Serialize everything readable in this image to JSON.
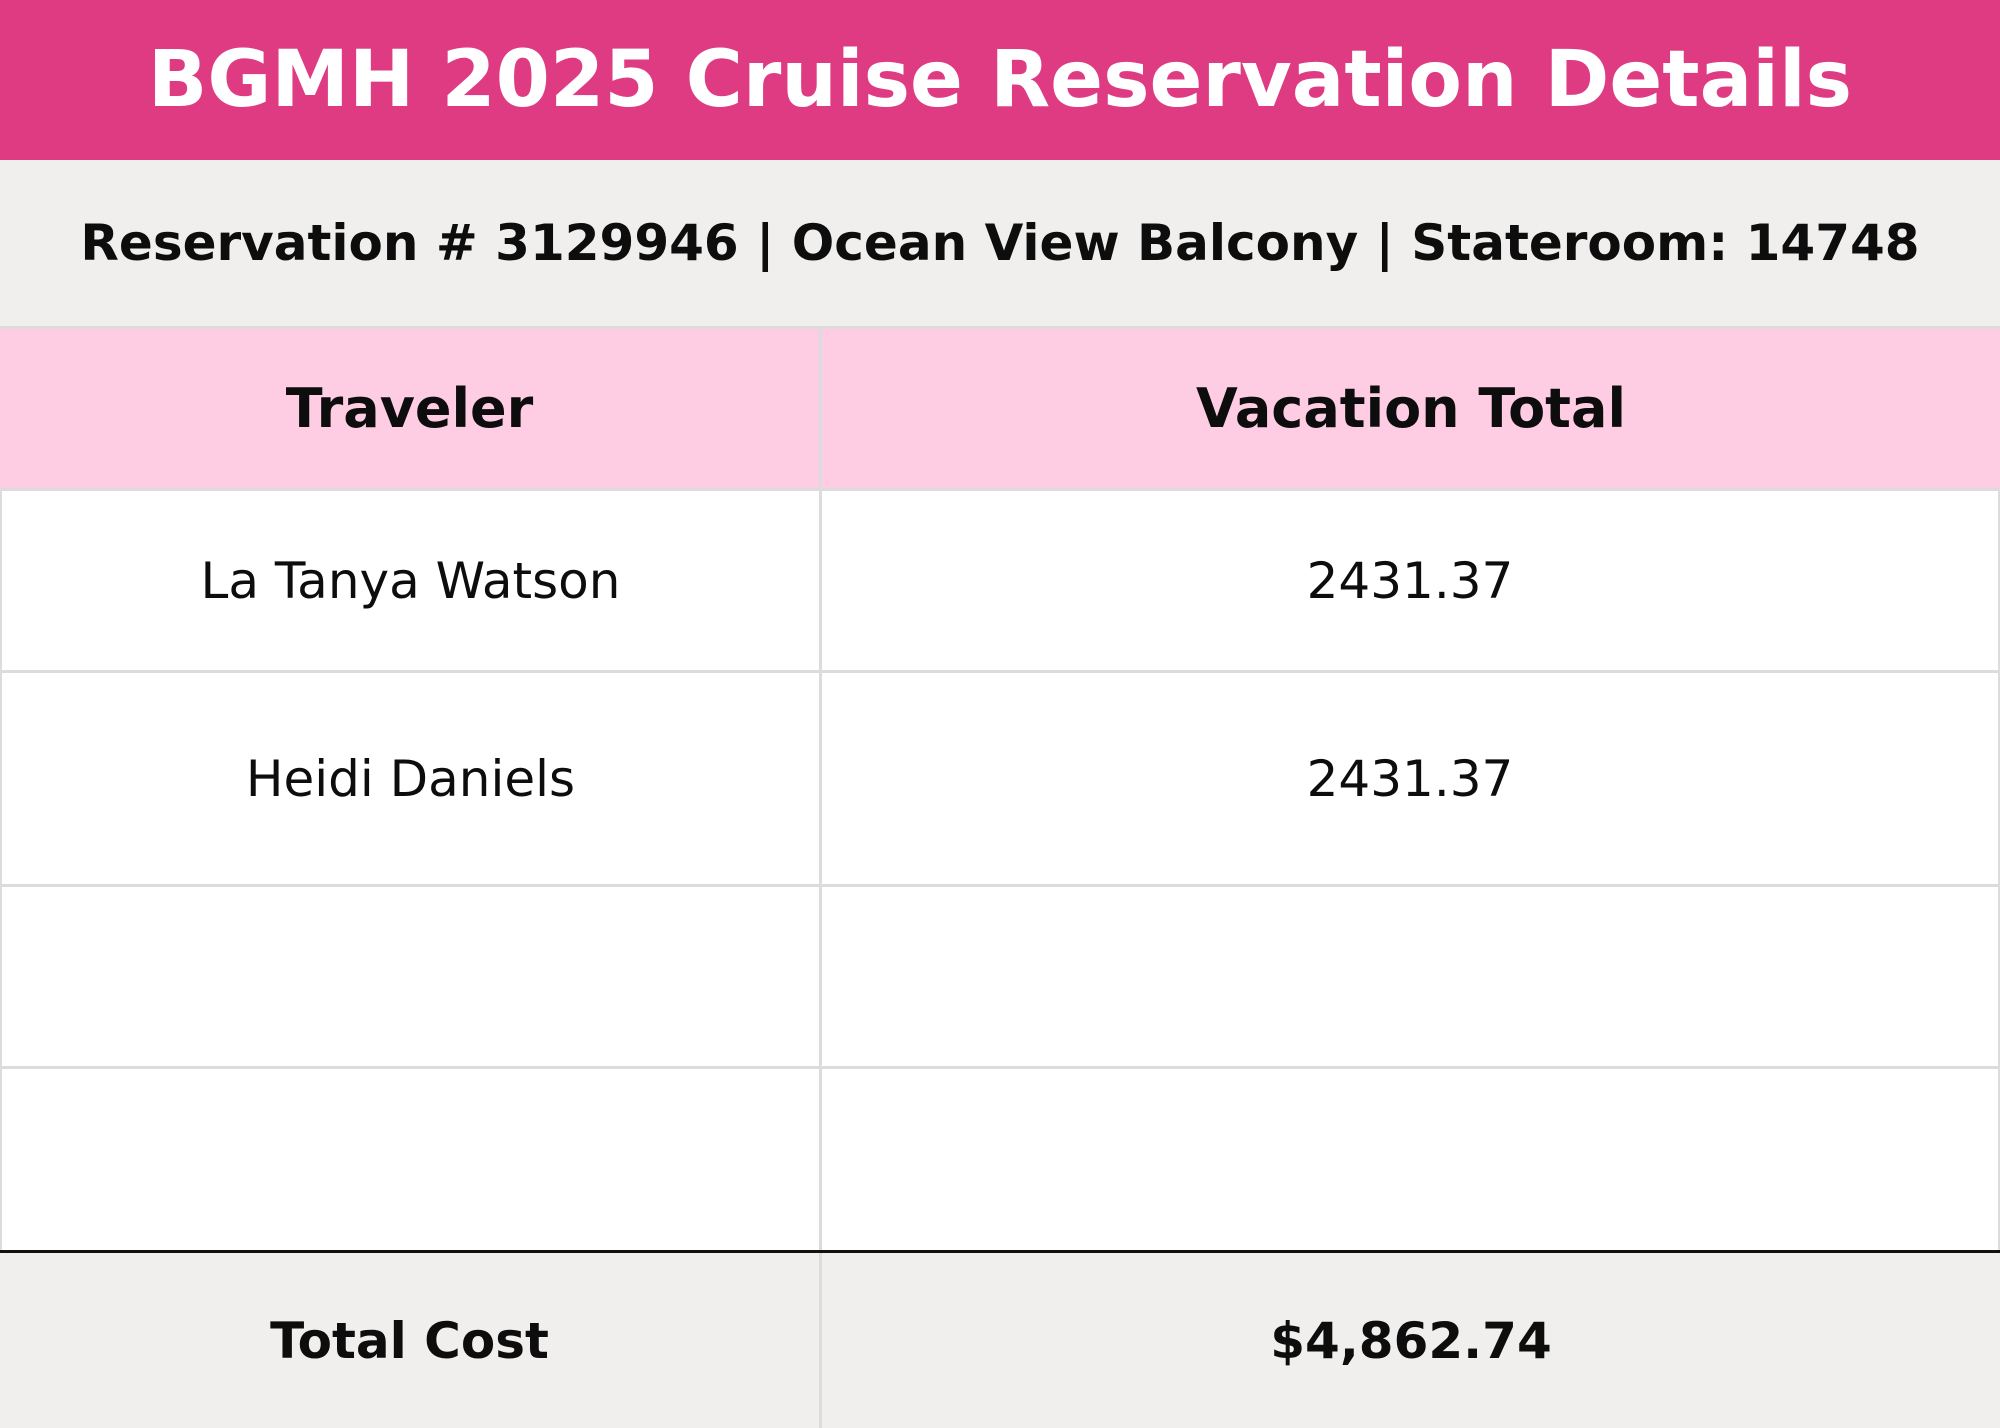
{
  "document": {
    "title": "BGMH 2025 Cruise Reservation Details",
    "subtitle": "Reservation # 3129946 | Ocean View Balcony | Stateroom: 14748"
  },
  "colors": {
    "title_bg": "#de3b83",
    "subtitle_bg": "#f0efed",
    "header_bg": "#fecde3",
    "total_bg": "#f0efed"
  },
  "table": {
    "headers": {
      "traveler": "Traveler",
      "vacation_total": "Vacation Total"
    },
    "rows": [
      {
        "traveler": "La Tanya Watson",
        "vacation_total": "2431.37"
      },
      {
        "traveler": "Heidi Daniels",
        "vacation_total": "2431.37"
      },
      {
        "traveler": "",
        "vacation_total": ""
      },
      {
        "traveler": "",
        "vacation_total": ""
      }
    ],
    "total": {
      "label": "Total Cost",
      "value": "$4,862.74"
    }
  }
}
